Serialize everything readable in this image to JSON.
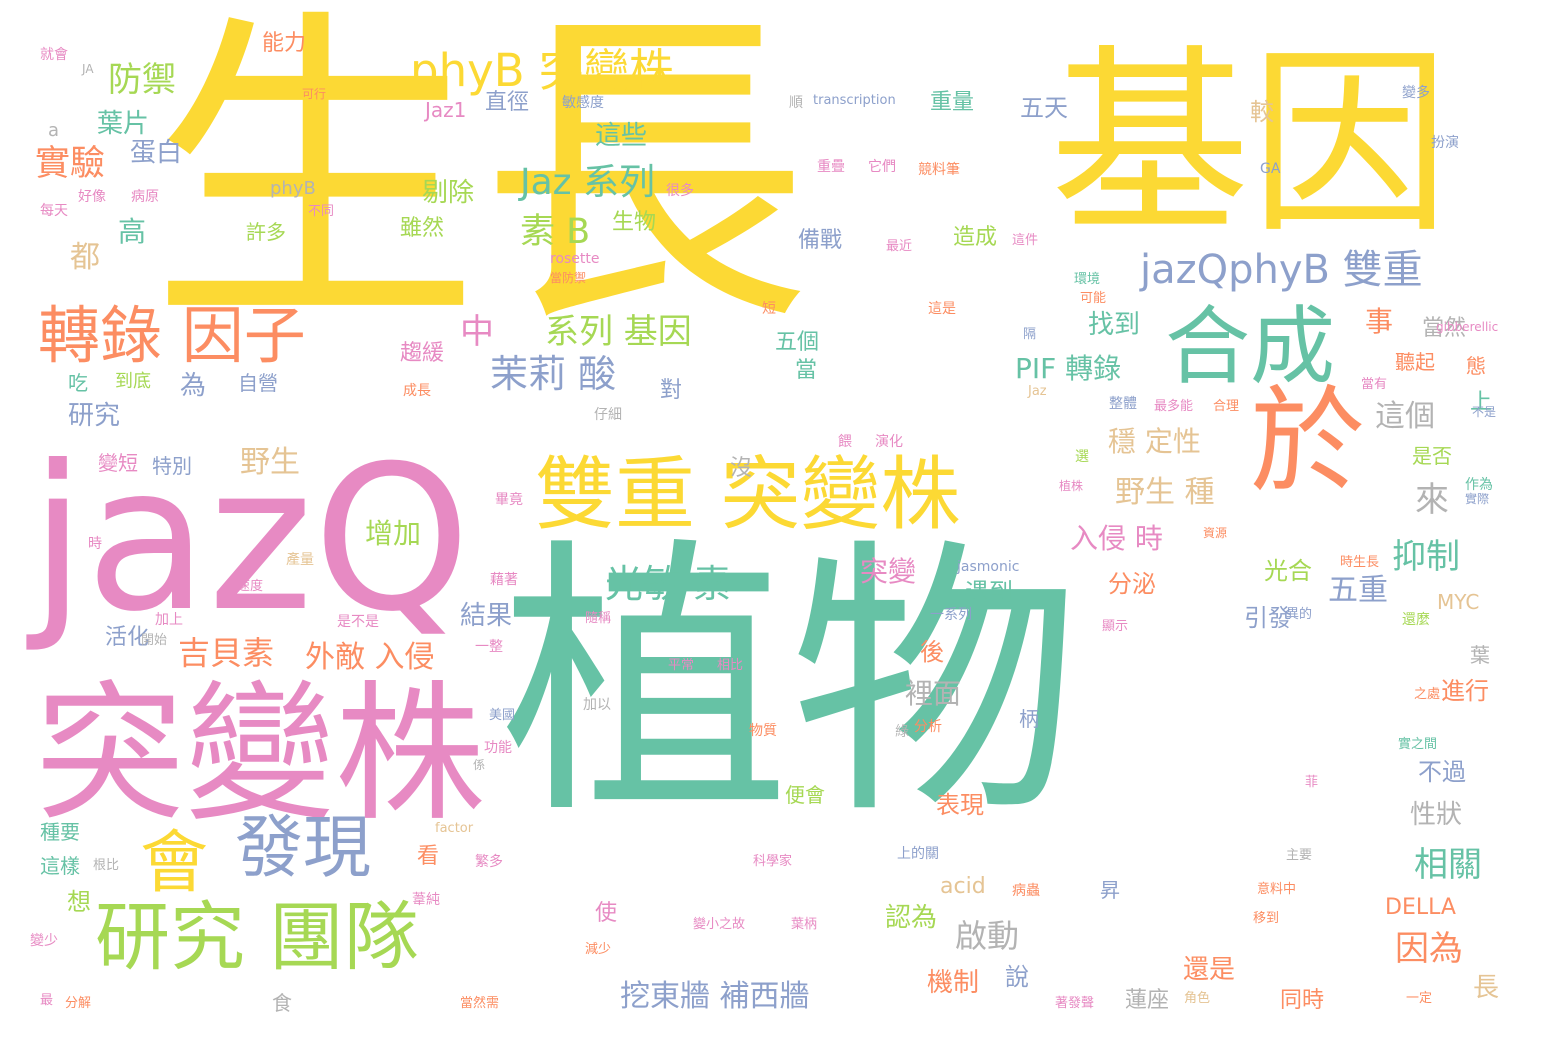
{
  "palette": {
    "yellow": "#fcd934",
    "green": "#66c2a5",
    "pink": "#e78ac3",
    "orange": "#fc8d62",
    "blue": "#8da0cb",
    "lime": "#a6d854",
    "tan": "#e5c494",
    "grey": "#b3b3b3"
  },
  "words": [
    {
      "text": "生長",
      "color": "yellow"
    },
    {
      "text": "基因",
      "color": "yellow"
    },
    {
      "text": "植物",
      "color": "green"
    },
    {
      "text": "jazQ",
      "color": "pink"
    },
    {
      "text": "突變株",
      "color": "pink"
    },
    {
      "text": "於",
      "color": "orange"
    },
    {
      "text": "合成",
      "color": "green"
    },
    {
      "text": "雙重 突變株",
      "color": "yellow"
    },
    {
      "text": "研究 團隊",
      "color": "lime"
    },
    {
      "text": "會",
      "color": "yellow"
    },
    {
      "text": "發現",
      "color": "blue"
    },
    {
      "text": "轉錄 因子",
      "color": "orange"
    },
    {
      "text": "phyB 突變株",
      "color": "yellow"
    },
    {
      "text": "jazQphyB 雙重",
      "color": "blue"
    },
    {
      "text": "茉莉 酸",
      "color": "blue"
    },
    {
      "text": "光敏 素",
      "color": "green"
    },
    {
      "text": "Jaz 系列",
      "color": "green"
    },
    {
      "text": "素 B",
      "color": "lime"
    },
    {
      "text": "系列 基因",
      "color": "lime"
    },
    {
      "text": "PIF 轉錄",
      "color": "green"
    },
    {
      "text": "野生 種",
      "color": "tan"
    },
    {
      "text": "穩 定性",
      "color": "tan"
    },
    {
      "text": "入侵 時",
      "color": "pink"
    },
    {
      "text": "吉貝素",
      "color": "orange"
    },
    {
      "text": "外敵 入侵",
      "color": "orange"
    },
    {
      "text": "挖東牆 補西牆",
      "color": "blue"
    },
    {
      "text": "實驗",
      "color": "orange"
    },
    {
      "text": "防禦",
      "color": "lime"
    },
    {
      "text": "葉片",
      "color": "green"
    },
    {
      "text": "蛋白",
      "color": "blue"
    },
    {
      "text": "能力",
      "color": "orange"
    },
    {
      "text": "都",
      "color": "tan"
    },
    {
      "text": "高",
      "color": "green"
    },
    {
      "text": "中",
      "color": "pink"
    },
    {
      "text": "事",
      "color": "orange"
    },
    {
      "text": "抑制",
      "color": "green"
    },
    {
      "text": "來",
      "color": "grey"
    },
    {
      "text": "這個",
      "color": "grey"
    },
    {
      "text": "相關",
      "color": "green"
    },
    {
      "text": "因為",
      "color": "orange"
    },
    {
      "text": "五重",
      "color": "blue"
    },
    {
      "text": "啟動",
      "color": "grey"
    },
    {
      "text": "突變",
      "color": "pink"
    },
    {
      "text": "增加",
      "color": "lime"
    },
    {
      "text": "野生",
      "color": "tan"
    },
    {
      "text": "結果",
      "color": "blue"
    },
    {
      "text": "找到",
      "color": "green"
    },
    {
      "text": "這些",
      "color": "green"
    },
    {
      "text": "剔除",
      "color": "lime"
    },
    {
      "text": "五天",
      "color": "blue"
    },
    {
      "text": "重量",
      "color": "green"
    },
    {
      "text": "直徑",
      "color": "blue"
    },
    {
      "text": "Jaz1",
      "color": "pink"
    },
    {
      "text": "生物",
      "color": "lime"
    },
    {
      "text": "雖然",
      "color": "lime"
    },
    {
      "text": "許多",
      "color": "lime"
    },
    {
      "text": "phyB",
      "color": "grey"
    },
    {
      "text": "研究",
      "color": "blue"
    },
    {
      "text": "為",
      "color": "blue"
    },
    {
      "text": "自營",
      "color": "blue"
    },
    {
      "text": "到底",
      "color": "lime"
    },
    {
      "text": "吃",
      "color": "green"
    },
    {
      "text": "變短",
      "color": "pink"
    },
    {
      "text": "特別",
      "color": "blue"
    },
    {
      "text": "活化",
      "color": "blue"
    },
    {
      "text": "說",
      "color": "blue"
    },
    {
      "text": "機制",
      "color": "orange"
    },
    {
      "text": "認為",
      "color": "lime"
    },
    {
      "text": "表現",
      "color": "orange"
    },
    {
      "text": "裡面",
      "color": "grey"
    },
    {
      "text": "後",
      "color": "orange"
    },
    {
      "text": "遇到",
      "color": "green"
    },
    {
      "text": "分泌",
      "color": "orange"
    },
    {
      "text": "光合",
      "color": "lime"
    },
    {
      "text": "引發",
      "color": "blue"
    },
    {
      "text": "進行",
      "color": "orange"
    },
    {
      "text": "不過",
      "color": "blue"
    },
    {
      "text": "性狀",
      "color": "grey"
    },
    {
      "text": "DELLA",
      "color": "orange"
    },
    {
      "text": "MYC",
      "color": "tan"
    },
    {
      "text": "還是",
      "color": "orange"
    },
    {
      "text": "同時",
      "color": "orange"
    },
    {
      "text": "蓮座",
      "color": "grey"
    },
    {
      "text": "長",
      "color": "tan"
    },
    {
      "text": "acid",
      "color": "tan"
    },
    {
      "text": "使",
      "color": "pink"
    },
    {
      "text": "食",
      "color": "grey"
    },
    {
      "text": "想",
      "color": "lime"
    },
    {
      "text": "看",
      "color": "orange"
    },
    {
      "text": "備戰",
      "color": "blue"
    },
    {
      "text": "造成",
      "color": "lime"
    },
    {
      "text": "五個",
      "color": "green"
    },
    {
      "text": "當",
      "color": "green"
    },
    {
      "text": "對",
      "color": "blue"
    },
    {
      "text": "較",
      "color": "tan"
    },
    {
      "text": "上",
      "color": "green"
    },
    {
      "text": "當然",
      "color": "grey"
    },
    {
      "text": "聽起",
      "color": "orange"
    },
    {
      "text": "態",
      "color": "orange"
    },
    {
      "text": "是否",
      "color": "lime"
    },
    {
      "text": "柄",
      "color": "blue"
    },
    {
      "text": "葉",
      "color": "grey"
    },
    {
      "text": "昇",
      "color": "blue"
    },
    {
      "text": "便會",
      "color": "lime"
    },
    {
      "text": "沒",
      "color": "grey"
    },
    {
      "text": "a",
      "color": "grey"
    },
    {
      "text": "就會",
      "color": "pink"
    },
    {
      "text": "JA",
      "color": "grey"
    },
    {
      "text": "可行",
      "color": "orange"
    },
    {
      "text": "敏感度",
      "color": "blue"
    },
    {
      "text": "順",
      "color": "grey"
    },
    {
      "text": "transcription",
      "color": "blue"
    },
    {
      "text": "變多",
      "color": "blue"
    },
    {
      "text": "扮演",
      "color": "blue"
    },
    {
      "text": "GA",
      "color": "blue"
    },
    {
      "text": "重疊",
      "color": "pink"
    },
    {
      "text": "它們",
      "color": "pink"
    },
    {
      "text": "競料筆",
      "color": "orange"
    },
    {
      "text": "最近",
      "color": "pink"
    },
    {
      "text": "這件",
      "color": "pink"
    },
    {
      "text": "環境",
      "color": "green"
    },
    {
      "text": "可能",
      "color": "orange"
    },
    {
      "text": "gibberellic",
      "color": "pink"
    },
    {
      "text": "短",
      "color": "orange"
    },
    {
      "text": "這是",
      "color": "orange"
    },
    {
      "text": "隔",
      "color": "blue"
    },
    {
      "text": "rosette",
      "color": "pink"
    },
    {
      "text": "當防禦",
      "color": "orange"
    },
    {
      "text": "每天",
      "color": "pink"
    },
    {
      "text": "好像",
      "color": "pink"
    },
    {
      "text": "病原",
      "color": "pink"
    },
    {
      "text": "很多",
      "color": "pink"
    },
    {
      "text": "不同",
      "color": "pink"
    },
    {
      "text": "趨緩",
      "color": "pink"
    },
    {
      "text": "成長",
      "color": "orange"
    },
    {
      "text": "仔細",
      "color": "grey"
    },
    {
      "text": "Jaz",
      "color": "tan"
    },
    {
      "text": "整體",
      "color": "blue"
    },
    {
      "text": "最多能",
      "color": "pink"
    },
    {
      "text": "合理",
      "color": "orange"
    },
    {
      "text": "當有",
      "color": "pink"
    },
    {
      "text": "不是",
      "color": "blue"
    },
    {
      "text": "餵",
      "color": "pink"
    },
    {
      "text": "演化",
      "color": "pink"
    },
    {
      "text": "選",
      "color": "lime"
    },
    {
      "text": "植株",
      "color": "pink"
    },
    {
      "text": "畢竟",
      "color": "pink"
    },
    {
      "text": "資源",
      "color": "orange"
    },
    {
      "text": "作為",
      "color": "green"
    },
    {
      "text": "實際",
      "color": "blue"
    },
    {
      "text": "時",
      "color": "pink"
    },
    {
      "text": "時生長",
      "color": "orange"
    },
    {
      "text": "jasmonic",
      "color": "blue"
    },
    {
      "text": "藉著",
      "color": "pink"
    },
    {
      "text": "產量",
      "color": "tan"
    },
    {
      "text": "速度",
      "color": "pink"
    },
    {
      "text": "加上",
      "color": "pink"
    },
    {
      "text": "是不是",
      "color": "pink"
    },
    {
      "text": "開始",
      "color": "grey"
    },
    {
      "text": "一系列",
      "color": "blue"
    },
    {
      "text": "顯示",
      "color": "pink"
    },
    {
      "text": "隨稱",
      "color": "pink"
    },
    {
      "text": "一整",
      "color": "pink"
    },
    {
      "text": "異的",
      "color": "blue"
    },
    {
      "text": "還麼",
      "color": "lime"
    },
    {
      "text": "平常",
      "color": "pink"
    },
    {
      "text": "相比",
      "color": "pink"
    },
    {
      "text": "加以",
      "color": "grey"
    },
    {
      "text": "之處",
      "color": "orange"
    },
    {
      "text": "美國",
      "color": "blue"
    },
    {
      "text": "分析",
      "color": "orange"
    },
    {
      "text": "物質",
      "color": "orange"
    },
    {
      "text": "綠",
      "color": "grey"
    },
    {
      "text": "實之間",
      "color": "green"
    },
    {
      "text": "功能",
      "color": "pink"
    },
    {
      "text": "係",
      "color": "grey"
    },
    {
      "text": "菲",
      "color": "pink"
    },
    {
      "text": "種要",
      "color": "green"
    },
    {
      "text": "factor",
      "color": "tan"
    },
    {
      "text": "這樣",
      "color": "green"
    },
    {
      "text": "根比",
      "color": "grey"
    },
    {
      "text": "上的關",
      "color": "blue"
    },
    {
      "text": "科學家",
      "color": "pink"
    },
    {
      "text": "主要",
      "color": "grey"
    },
    {
      "text": "繁多",
      "color": "pink"
    },
    {
      "text": "意料中",
      "color": "orange"
    },
    {
      "text": "病蟲",
      "color": "orange"
    },
    {
      "text": "葦純",
      "color": "pink"
    },
    {
      "text": "移到",
      "color": "orange"
    },
    {
      "text": "變小之故",
      "color": "pink"
    },
    {
      "text": "葉柄",
      "color": "pink"
    },
    {
      "text": "變少",
      "color": "pink"
    },
    {
      "text": "減少",
      "color": "orange"
    },
    {
      "text": "最",
      "color": "pink"
    },
    {
      "text": "分解",
      "color": "orange"
    },
    {
      "text": "當然需",
      "color": "orange"
    },
    {
      "text": "著發聲",
      "color": "pink"
    },
    {
      "text": "角色",
      "color": "tan"
    },
    {
      "text": "一定",
      "color": "orange"
    }
  ]
}
